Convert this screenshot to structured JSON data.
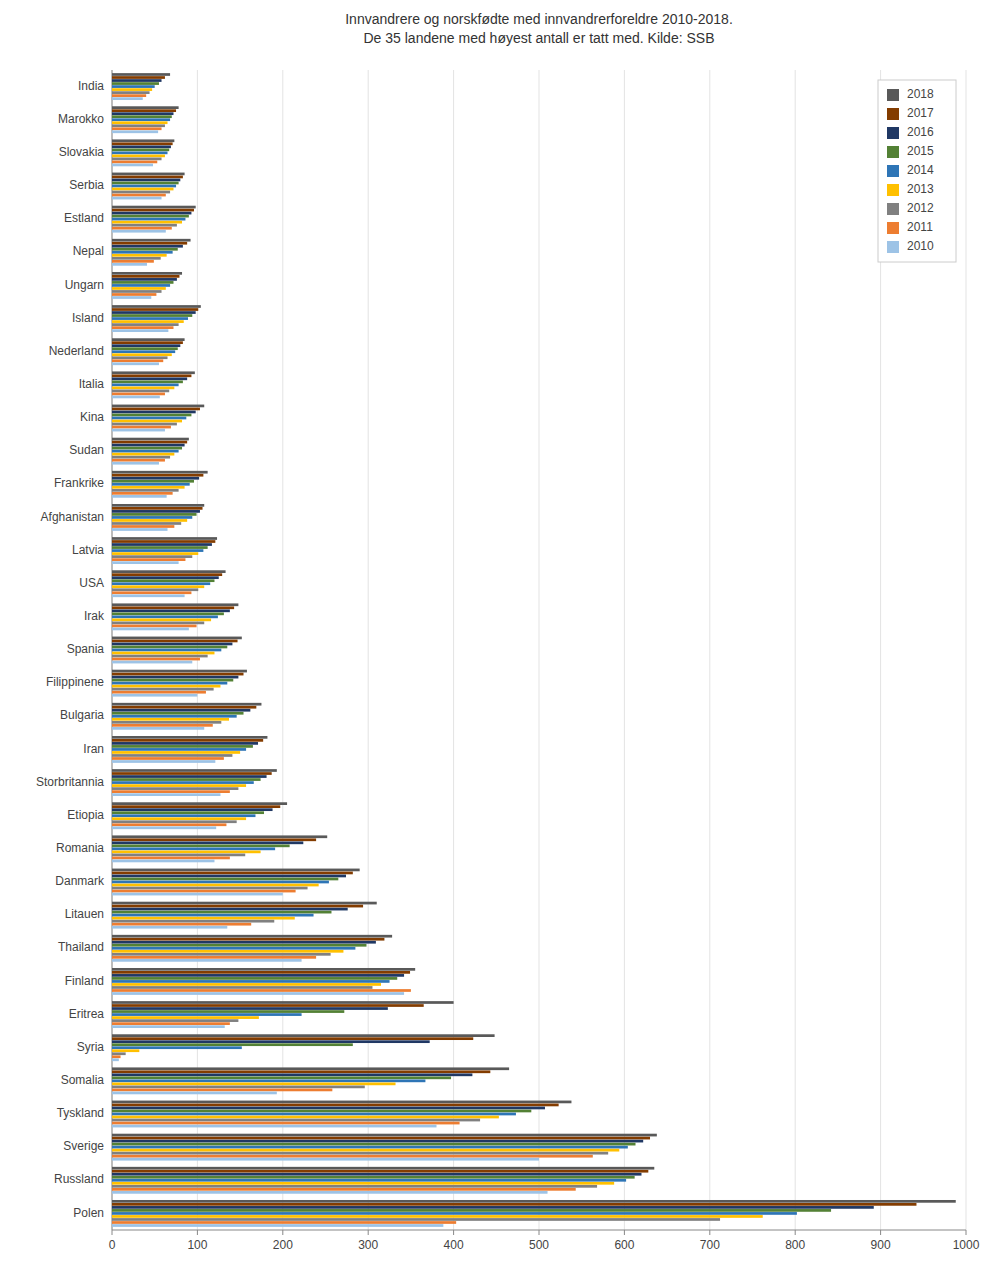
{
  "chart_data": {
    "type": "bar",
    "orientation": "horizontal",
    "title": "Innvandrere og norskfødte med innvandrerforeldre 2010-2018.\nDe 35 landene med høyest antall er tatt med. Kilde: SSB",
    "categories": [
      "India",
      "Marokko",
      "Slovakia",
      "Serbia",
      "Estland",
      "Nepal",
      "Ungarn",
      "Island",
      "Nederland",
      "Italia",
      "Kina",
      "Sudan",
      "Frankrike",
      "Afghanistan",
      "Latvia",
      "USA",
      "Irak",
      "Spania",
      "Filippinene",
      "Bulgaria",
      "Iran",
      "Storbritannia",
      "Etiopia",
      "Romania",
      "Danmark",
      "Litauen",
      "Thailand",
      "Finland",
      "Eritrea",
      "Syria",
      "Somalia",
      "Tyskland",
      "Sverige",
      "Russland",
      "Polen"
    ],
    "series": [
      {
        "name": "2018",
        "color": "#595959",
        "values": [
          68,
          78,
          73,
          85,
          98,
          92,
          82,
          104,
          85,
          97,
          108,
          90,
          112,
          108,
          123,
          133,
          148,
          152,
          158,
          175,
          182,
          193,
          205,
          252,
          290,
          310,
          328,
          355,
          400,
          448,
          465,
          538,
          638,
          635,
          988
        ]
      },
      {
        "name": "2017",
        "color": "#833c00",
        "values": [
          62,
          75,
          71,
          83,
          96,
          88,
          79,
          101,
          83,
          93,
          103,
          88,
          107,
          106,
          121,
          129,
          143,
          147,
          154,
          169,
          177,
          187,
          197,
          239,
          282,
          294,
          319,
          349,
          365,
          423,
          443,
          523,
          630,
          628,
          942
        ]
      },
      {
        "name": "2016",
        "color": "#203864",
        "values": [
          58,
          72,
          69,
          80,
          93,
          83,
          76,
          98,
          80,
          88,
          98,
          85,
          102,
          103,
          117,
          125,
          138,
          141,
          148,
          162,
          171,
          181,
          188,
          224,
          274,
          276,
          309,
          342,
          323,
          372,
          422,
          507,
          622,
          620,
          892
        ]
      },
      {
        "name": "2015",
        "color": "#538135",
        "values": [
          55,
          70,
          67,
          78,
          90,
          77,
          72,
          94,
          77,
          83,
          93,
          82,
          96,
          99,
          112,
          120,
          131,
          135,
          142,
          154,
          165,
          174,
          178,
          208,
          265,
          257,
          298,
          334,
          272,
          282,
          397,
          491,
          613,
          612,
          842
        ]
      },
      {
        "name": "2014",
        "color": "#2e75b6",
        "values": [
          50,
          68,
          65,
          75,
          86,
          71,
          68,
          89,
          74,
          78,
          87,
          78,
          91,
          94,
          107,
          115,
          124,
          128,
          135,
          146,
          157,
          166,
          168,
          191,
          254,
          236,
          285,
          325,
          222,
          152,
          367,
          473,
          604,
          602,
          802
        ]
      },
      {
        "name": "2013",
        "color": "#ffc000",
        "values": [
          47,
          65,
          62,
          72,
          82,
          64,
          63,
          84,
          70,
          73,
          82,
          73,
          85,
          88,
          101,
          108,
          116,
          120,
          127,
          137,
          150,
          157,
          157,
          174,
          242,
          214,
          271,
          315,
          172,
          32,
          332,
          453,
          594,
          588,
          762
        ]
      },
      {
        "name": "2012",
        "color": "#808080",
        "values": [
          44,
          62,
          58,
          68,
          76,
          57,
          58,
          78,
          65,
          67,
          76,
          68,
          78,
          81,
          94,
          101,
          108,
          112,
          119,
          128,
          141,
          148,
          146,
          156,
          229,
          190,
          256,
          305,
          148,
          16,
          296,
          431,
          581,
          568,
          712
        ]
      },
      {
        "name": "2011",
        "color": "#ed7d31",
        "values": [
          40,
          58,
          53,
          63,
          70,
          49,
          52,
          72,
          60,
          62,
          69,
          62,
          71,
          73,
          86,
          93,
          99,
          103,
          110,
          118,
          131,
          138,
          134,
          138,
          215,
          163,
          239,
          350,
          138,
          10,
          258,
          407,
          563,
          543,
          403
        ]
      },
      {
        "name": "2010",
        "color": "#9dc3e6",
        "values": [
          36,
          54,
          48,
          58,
          63,
          41,
          46,
          66,
          55,
          56,
          62,
          55,
          64,
          65,
          78,
          85,
          90,
          94,
          100,
          108,
          121,
          127,
          122,
          120,
          200,
          135,
          222,
          342,
          132,
          8,
          193,
          380,
          500,
          510,
          388
        ]
      }
    ],
    "xlim": [
      0,
      1000
    ],
    "xticks": [
      0,
      100,
      200,
      300,
      400,
      500,
      600,
      700,
      800,
      900,
      1000
    ],
    "grid": true,
    "legend": "upper-right"
  }
}
